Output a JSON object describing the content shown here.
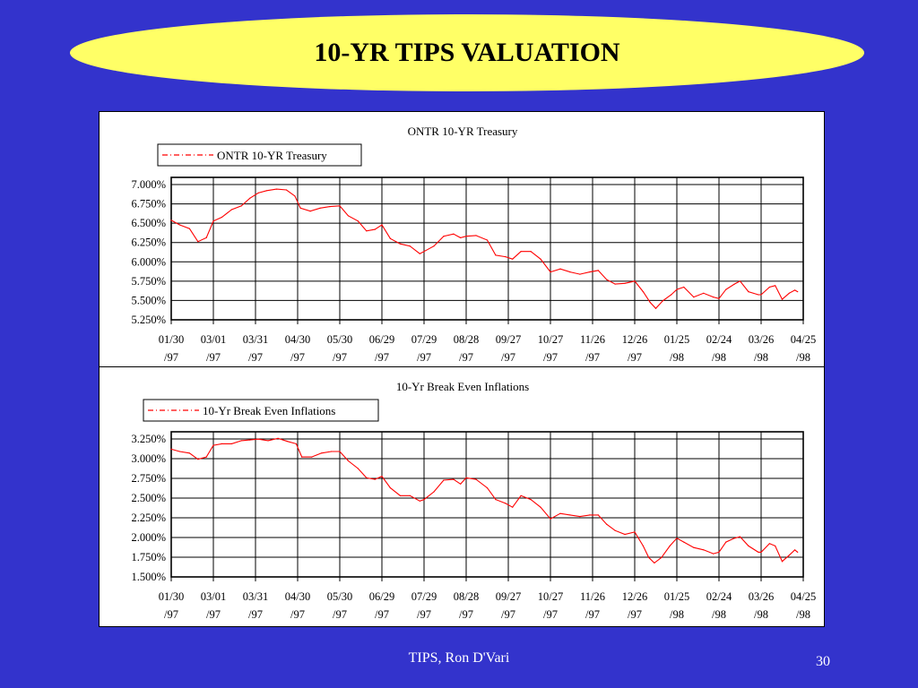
{
  "slide": {
    "title": "10-YR TIPS VALUATION",
    "footer": "TIPS, Ron D'Vari",
    "page_number": "30"
  },
  "colors": {
    "background": "#3333cc",
    "title_fill": "#ffff66",
    "series_line": "#ff0000"
  },
  "chart_data": [
    {
      "type": "line",
      "title": "ONTR 10-YR Treasury",
      "legend": "top-left",
      "grid": true,
      "x_range": [
        "1997-01-30",
        "1998-04-25"
      ],
      "x_ticks": [
        "01/30 /97",
        "03/01 /97",
        "03/31 /97",
        "04/30 /97",
        "05/30 /97",
        "06/29 /97",
        "07/29 /97",
        "08/28 /97",
        "09/27 /97",
        "10/27 /97",
        "11/26 /97",
        "12/26 /97",
        "01/25 /98",
        "02/24 /98",
        "03/26 /98",
        "04/25 /98"
      ],
      "y_ticks": [
        "7.000%",
        "6.750%",
        "6.500%",
        "6.250%",
        "6.000%",
        "5.750%",
        "5.500%",
        "5.250%"
      ],
      "ylim": [
        5.25,
        7.125
      ],
      "series": [
        {
          "name": "ONTR 10-YR Treasury",
          "points": [
            [
              "1997-01-30",
              6.56
            ],
            [
              "1997-02-05",
              6.5
            ],
            [
              "1997-02-12",
              6.45
            ],
            [
              "1997-02-18",
              6.28
            ],
            [
              "1997-02-24",
              6.33
            ],
            [
              "1997-03-01",
              6.55
            ],
            [
              "1997-03-07",
              6.6
            ],
            [
              "1997-03-14",
              6.7
            ],
            [
              "1997-03-21",
              6.75
            ],
            [
              "1997-03-27",
              6.85
            ],
            [
              "1997-04-02",
              6.92
            ],
            [
              "1997-04-08",
              6.95
            ],
            [
              "1997-04-15",
              6.97
            ],
            [
              "1997-04-22",
              6.96
            ],
            [
              "1997-04-28",
              6.88
            ],
            [
              "1997-05-02",
              6.72
            ],
            [
              "1997-05-09",
              6.68
            ],
            [
              "1997-05-16",
              6.72
            ],
            [
              "1997-05-23",
              6.74
            ],
            [
              "1997-05-30",
              6.75
            ],
            [
              "1997-06-05",
              6.62
            ],
            [
              "1997-06-12",
              6.55
            ],
            [
              "1997-06-18",
              6.42
            ],
            [
              "1997-06-24",
              6.44
            ],
            [
              "1997-06-29",
              6.5
            ],
            [
              "1997-07-05",
              6.32
            ],
            [
              "1997-07-12",
              6.25
            ],
            [
              "1997-07-19",
              6.22
            ],
            [
              "1997-07-26",
              6.12
            ],
            [
              "1997-07-29",
              6.15
            ],
            [
              "1997-08-05",
              6.22
            ],
            [
              "1997-08-12",
              6.35
            ],
            [
              "1997-08-19",
              6.38
            ],
            [
              "1997-08-24",
              6.33
            ],
            [
              "1997-08-28",
              6.35
            ],
            [
              "1997-09-04",
              6.36
            ],
            [
              "1997-09-12",
              6.3
            ],
            [
              "1997-09-18",
              6.1
            ],
            [
              "1997-09-25",
              6.08
            ],
            [
              "1997-09-30",
              6.05
            ],
            [
              "1997-10-06",
              6.15
            ],
            [
              "1997-10-13",
              6.15
            ],
            [
              "1997-10-20",
              6.05
            ],
            [
              "1997-10-27",
              5.88
            ],
            [
              "1997-11-03",
              5.92
            ],
            [
              "1997-11-10",
              5.88
            ],
            [
              "1997-11-17",
              5.85
            ],
            [
              "1997-11-24",
              5.88
            ],
            [
              "1997-11-30",
              5.9
            ],
            [
              "1997-12-06",
              5.78
            ],
            [
              "1997-12-12",
              5.72
            ],
            [
              "1997-12-19",
              5.73
            ],
            [
              "1997-12-26",
              5.76
            ],
            [
              "1998-01-01",
              5.62
            ],
            [
              "1998-01-06",
              5.48
            ],
            [
              "1998-01-10",
              5.4
            ],
            [
              "1998-01-15",
              5.5
            ],
            [
              "1998-01-21",
              5.58
            ],
            [
              "1998-01-25",
              5.65
            ],
            [
              "1998-01-30",
              5.68
            ],
            [
              "1998-02-06",
              5.55
            ],
            [
              "1998-02-13",
              5.6
            ],
            [
              "1998-02-20",
              5.55
            ],
            [
              "1998-02-24",
              5.53
            ],
            [
              "1998-03-01",
              5.65
            ],
            [
              "1998-03-07",
              5.72
            ],
            [
              "1998-03-11",
              5.76
            ],
            [
              "1998-03-17",
              5.62
            ],
            [
              "1998-03-24",
              5.58
            ],
            [
              "1998-03-26",
              5.58
            ],
            [
              "1998-04-01",
              5.68
            ],
            [
              "1998-04-05",
              5.7
            ],
            [
              "1998-04-10",
              5.52
            ],
            [
              "1998-04-15",
              5.6
            ],
            [
              "1998-04-19",
              5.64
            ],
            [
              "1998-04-21",
              5.62
            ]
          ]
        }
      ]
    },
    {
      "type": "line",
      "title": "10-Yr Break Even Inflations",
      "legend": "top-left",
      "grid": true,
      "x_range": [
        "1997-01-30",
        "1998-04-25"
      ],
      "x_ticks": [
        "01/30 /97",
        "03/01 /97",
        "03/31 /97",
        "04/30 /97",
        "05/30 /97",
        "06/29 /97",
        "07/29 /97",
        "08/28 /97",
        "09/27 /97",
        "10/27 /97",
        "11/26 /97",
        "12/26 /97",
        "01/25 /98",
        "02/24 /98",
        "03/26 /98",
        "04/25 /98"
      ],
      "y_ticks": [
        "3.250%",
        "3.000%",
        "2.750%",
        "2.500%",
        "2.250%",
        "2.000%",
        "1.750%",
        "1.500%"
      ],
      "ylim": [
        1.5,
        3.375
      ],
      "series": [
        {
          "name": "10-Yr Break Even Inflations",
          "points": [
            [
              "1997-01-30",
              3.15
            ],
            [
              "1997-02-05",
              3.12
            ],
            [
              "1997-02-12",
              3.1
            ],
            [
              "1997-02-18",
              3.02
            ],
            [
              "1997-02-24",
              3.05
            ],
            [
              "1997-03-01",
              3.2
            ],
            [
              "1997-03-07",
              3.22
            ],
            [
              "1997-03-14",
              3.22
            ],
            [
              "1997-03-21",
              3.26
            ],
            [
              "1997-03-27",
              3.27
            ],
            [
              "1997-04-02",
              3.28
            ],
            [
              "1997-04-09",
              3.26
            ],
            [
              "1997-04-16",
              3.29
            ],
            [
              "1997-04-23",
              3.25
            ],
            [
              "1997-04-29",
              3.22
            ],
            [
              "1997-05-03",
              3.05
            ],
            [
              "1997-05-10",
              3.05
            ],
            [
              "1997-05-17",
              3.1
            ],
            [
              "1997-05-24",
              3.12
            ],
            [
              "1997-05-30",
              3.12
            ],
            [
              "1997-06-05",
              3.0
            ],
            [
              "1997-06-12",
              2.9
            ],
            [
              "1997-06-18",
              2.78
            ],
            [
              "1997-06-24",
              2.76
            ],
            [
              "1997-06-29",
              2.8
            ],
            [
              "1997-07-05",
              2.65
            ],
            [
              "1997-07-12",
              2.55
            ],
            [
              "1997-07-19",
              2.55
            ],
            [
              "1997-07-26",
              2.48
            ],
            [
              "1997-07-29",
              2.5
            ],
            [
              "1997-08-05",
              2.6
            ],
            [
              "1997-08-12",
              2.75
            ],
            [
              "1997-08-19",
              2.76
            ],
            [
              "1997-08-24",
              2.7
            ],
            [
              "1997-08-28",
              2.78
            ],
            [
              "1997-09-04",
              2.76
            ],
            [
              "1997-09-12",
              2.65
            ],
            [
              "1997-09-18",
              2.5
            ],
            [
              "1997-09-25",
              2.45
            ],
            [
              "1997-09-30",
              2.4
            ],
            [
              "1997-10-06",
              2.55
            ],
            [
              "1997-10-13",
              2.5
            ],
            [
              "1997-10-20",
              2.4
            ],
            [
              "1997-10-27",
              2.25
            ],
            [
              "1997-11-03",
              2.32
            ],
            [
              "1997-11-10",
              2.3
            ],
            [
              "1997-11-17",
              2.28
            ],
            [
              "1997-11-24",
              2.3
            ],
            [
              "1997-11-30",
              2.3
            ],
            [
              "1997-12-06",
              2.18
            ],
            [
              "1997-12-12",
              2.1
            ],
            [
              "1997-12-19",
              2.05
            ],
            [
              "1997-12-26",
              2.08
            ],
            [
              "1998-01-01",
              1.9
            ],
            [
              "1998-01-05",
              1.75
            ],
            [
              "1998-01-09",
              1.68
            ],
            [
              "1998-01-14",
              1.75
            ],
            [
              "1998-01-20",
              1.9
            ],
            [
              "1998-01-25",
              2.0
            ],
            [
              "1998-01-30",
              1.95
            ],
            [
              "1998-02-06",
              1.88
            ],
            [
              "1998-02-13",
              1.85
            ],
            [
              "1998-02-20",
              1.8
            ],
            [
              "1998-02-24",
              1.82
            ],
            [
              "1998-03-01",
              1.95
            ],
            [
              "1998-03-07",
              2.0
            ],
            [
              "1998-03-11",
              2.02
            ],
            [
              "1998-03-17",
              1.9
            ],
            [
              "1998-03-24",
              1.82
            ],
            [
              "1998-03-26",
              1.82
            ],
            [
              "1998-04-01",
              1.93
            ],
            [
              "1998-04-05",
              1.9
            ],
            [
              "1998-04-10",
              1.7
            ],
            [
              "1998-04-15",
              1.78
            ],
            [
              "1998-04-19",
              1.85
            ],
            [
              "1998-04-21",
              1.82
            ]
          ]
        }
      ]
    }
  ]
}
